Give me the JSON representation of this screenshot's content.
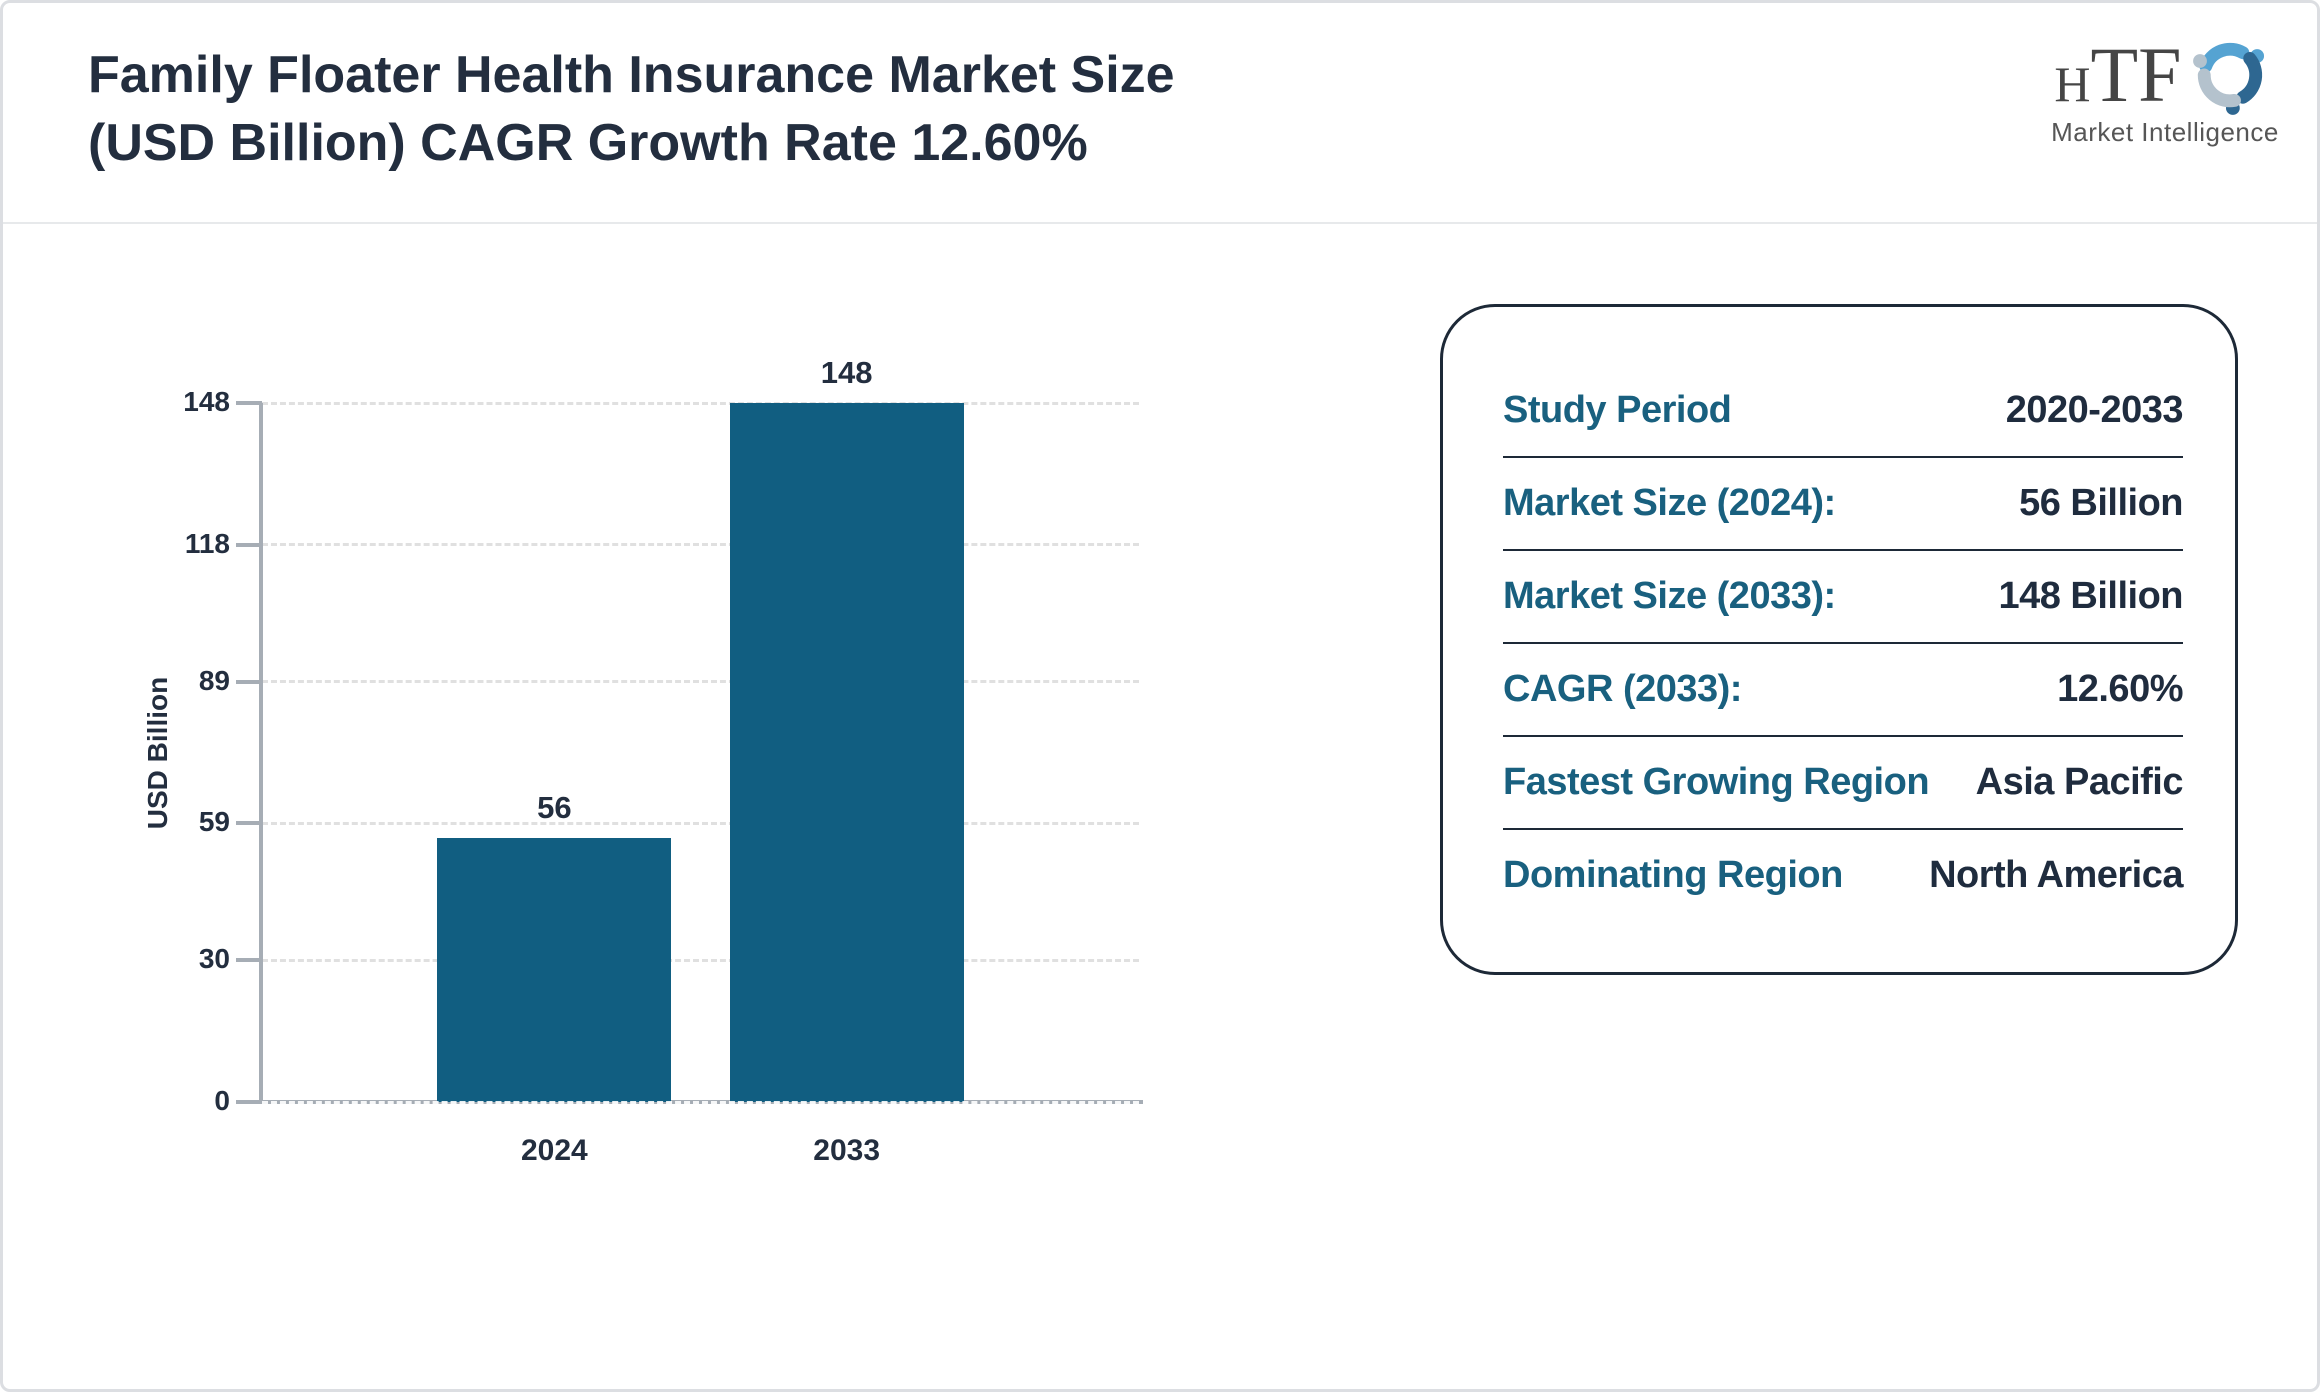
{
  "header": {
    "title_lines": [
      "Family Floater Health Insurance Market Size",
      "(USD Billion) CAGR Growth Rate 12.60%"
    ],
    "logo": {
      "text_small": "H",
      "text_large": "TF",
      "subtext": "Market Intelligence"
    }
  },
  "chart_data": {
    "type": "bar",
    "title": "Family Floater Health Insurance Market Size (USD Billion) CAGR Growth Rate 12.60%",
    "categories": [
      "2024",
      "2033"
    ],
    "values": [
      56,
      148
    ],
    "value_labels": [
      "56",
      "148"
    ],
    "xlabel": "",
    "ylabel": "USD Billion",
    "ylim": [
      0,
      148
    ],
    "yticks": [
      0,
      30,
      59,
      89,
      118,
      148
    ],
    "grid": "horizontal-dashed",
    "legend": "none",
    "bar_color": "#115E81"
  },
  "panel": {
    "rows": [
      {
        "label": "Study Period",
        "value": "2020-2033"
      },
      {
        "label": "Market Size (2024):",
        "value": "56 Billion"
      },
      {
        "label": "Market Size (2033):",
        "value": "148 Billion"
      },
      {
        "label": "CAGR (2033):",
        "value": "12.60%"
      },
      {
        "label": "Fastest Growing Region",
        "value": "Asia Pacific"
      },
      {
        "label": "Dominating Region",
        "value": "North America"
      }
    ]
  },
  "colors": {
    "bar": "#115E81",
    "label_teal": "#19607F",
    "text_navy": "#232E3F",
    "axis_gray": "#A6ADB5",
    "gridline": "#E0E0E0",
    "panel_border": "#1D2937",
    "page_border": "#DCDEE2"
  }
}
